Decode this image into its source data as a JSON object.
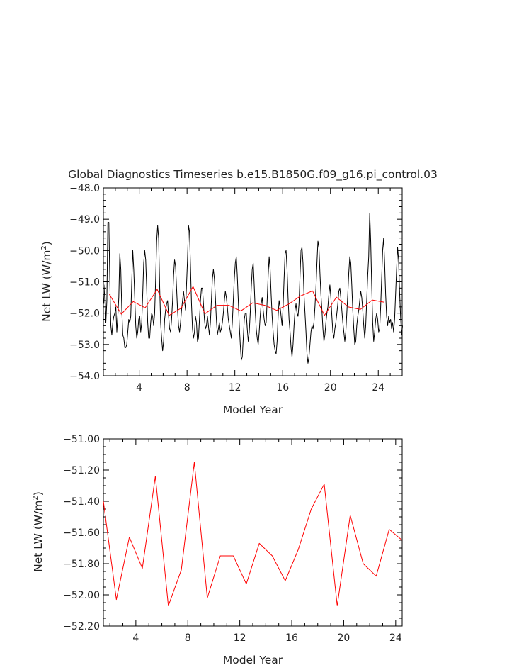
{
  "chart_data": [
    {
      "type": "line",
      "title": "Global Diagnostics Timeseries b.e15.B1850G.f09_g16.pi_control.03",
      "xlabel": "Model Year",
      "ylabel_main": "Net LW (W/m",
      "ylabel_sup": "2",
      "ylabel_close": ")",
      "xlim": [
        1,
        26
      ],
      "ylim": [
        -54.0,
        -48.0
      ],
      "xticks": [
        "4",
        "8",
        "12",
        "16",
        "20",
        "24"
      ],
      "yticks": [
        "-54.0",
        "-53.0",
        "-52.0",
        "-51.0",
        "-50.0",
        "-49.0",
        "-48.0"
      ],
      "series": [
        {
          "color": "#000000",
          "x_start": 1.042,
          "x_step": 0.0833,
          "values": [
            -51.7,
            -51.1,
            -52.3,
            -51.6,
            -49.1,
            -49.1,
            -51.0,
            -52.4,
            -52.7,
            -52.3,
            -52.1,
            -52.0,
            -51.8,
            -52.6,
            -52.1,
            -51.5,
            -50.1,
            -50.6,
            -51.9,
            -52.7,
            -52.8,
            -53.1,
            -53.1,
            -53.0,
            -52.6,
            -52.2,
            -52.3,
            -52.1,
            -51.0,
            -50.0,
            -50.6,
            -51.5,
            -52.4,
            -52.8,
            -52.6,
            -52.2,
            -52.1,
            -52.6,
            -52.3,
            -51.4,
            -50.4,
            -50.0,
            -50.3,
            -51.2,
            -52.3,
            -52.8,
            -52.8,
            -52.3,
            -52.0,
            -52.1,
            -52.4,
            -52.0,
            -50.9,
            -49.7,
            -49.2,
            -49.6,
            -51.1,
            -52.3,
            -52.8,
            -53.2,
            -52.9,
            -52.2,
            -51.9,
            -51.7,
            -51.6,
            -52.1,
            -52.5,
            -52.6,
            -52.2,
            -51.6,
            -50.8,
            -50.3,
            -50.5,
            -51.2,
            -51.9,
            -52.4,
            -52.6,
            -52.3,
            -51.9,
            -51.6,
            -51.3,
            -51.6,
            -51.9,
            -51.1,
            -50.3,
            -49.2,
            -49.4,
            -50.5,
            -51.7,
            -52.5,
            -52.8,
            -52.6,
            -52.1,
            -52.3,
            -52.9,
            -52.8,
            -52.2,
            -51.6,
            -51.2,
            -51.2,
            -51.7,
            -52.2,
            -52.5,
            -52.4,
            -52.1,
            -52.4,
            -52.7,
            -52.3,
            -51.6,
            -50.9,
            -50.6,
            -50.9,
            -51.5,
            -52.2,
            -52.7,
            -52.5,
            -52.3,
            -52.6,
            -52.5,
            -52.3,
            -52.0,
            -51.6,
            -51.3,
            -51.5,
            -51.8,
            -52.2,
            -52.4,
            -52.6,
            -52.8,
            -52.3,
            -51.6,
            -50.9,
            -50.4,
            -50.2,
            -50.8,
            -51.6,
            -52.4,
            -53.0,
            -53.5,
            -53.4,
            -52.8,
            -52.2,
            -52.0,
            -52.0,
            -52.5,
            -52.9,
            -52.6,
            -52.0,
            -51.2,
            -50.6,
            -50.4,
            -51.1,
            -51.9,
            -52.5,
            -52.8,
            -53.0,
            -52.6,
            -52.1,
            -51.7,
            -51.5,
            -51.9,
            -52.2,
            -52.4,
            -52.3,
            -51.6,
            -50.8,
            -50.2,
            -50.6,
            -51.4,
            -52.1,
            -52.6,
            -53.0,
            -53.2,
            -53.3,
            -52.9,
            -52.1,
            -51.6,
            -51.8,
            -52.1,
            -52.4,
            -51.8,
            -50.9,
            -50.1,
            -50.0,
            -50.6,
            -51.5,
            -52.2,
            -52.6,
            -53.1,
            -53.4,
            -53.0,
            -52.4,
            -51.9,
            -51.7,
            -52.0,
            -52.1,
            -51.7,
            -50.8,
            -50.0,
            -49.9,
            -50.4,
            -51.4,
            -52.0,
            -52.6,
            -53.3,
            -53.6,
            -53.4,
            -53.0,
            -52.6,
            -52.4,
            -52.5,
            -52.3,
            -51.8,
            -51.2,
            -50.4,
            -49.7,
            -49.9,
            -50.7,
            -51.4,
            -51.9,
            -52.5,
            -52.9,
            -52.7,
            -52.3,
            -52.0,
            -51.8,
            -51.4,
            -51.1,
            -51.5,
            -52.1,
            -52.6,
            -52.8,
            -52.5,
            -52.3,
            -52.0,
            -51.7,
            -51.3,
            -51.2,
            -51.5,
            -51.9,
            -52.3,
            -52.6,
            -52.9,
            -52.6,
            -52.0,
            -51.4,
            -50.7,
            -50.2,
            -50.4,
            -51.1,
            -51.9,
            -52.5,
            -53.0,
            -52.9,
            -52.4,
            -52.1,
            -51.9,
            -51.6,
            -51.3,
            -51.5,
            -51.9,
            -52.4,
            -52.8,
            -52.4,
            -51.6,
            -50.8,
            -50.2,
            -48.8,
            -49.7,
            -51.1,
            -52.3,
            -52.9,
            -52.6,
            -52.2,
            -52.0,
            -52.2,
            -52.6,
            -52.5,
            -51.8,
            -50.9,
            -50.0,
            -49.6,
            -50.4,
            -51.4,
            -52.1,
            -52.4,
            -52.1,
            -52.3,
            -52.2,
            -52.5,
            -52.3,
            -52.6,
            -52.2,
            -51.4,
            -50.6,
            -49.9,
            -50.3,
            -51.3,
            -52.1,
            -52.7,
            -52.4
          ]
        },
        {
          "color": "#ff0000",
          "x": [
            1.5,
            2.5,
            3.5,
            4.5,
            5.5,
            6.5,
            7.5,
            8.5,
            9.5,
            10.5,
            11.5,
            12.5,
            13.5,
            14.5,
            15.5,
            16.5,
            17.5,
            18.5,
            19.5,
            20.5,
            21.5,
            22.5,
            23.5,
            24.5
          ],
          "values": [
            -51.4,
            -52.03,
            -51.63,
            -51.83,
            -51.24,
            -52.07,
            -51.84,
            -51.15,
            -52.02,
            -51.75,
            -51.75,
            -51.93,
            -51.67,
            -51.75,
            -51.91,
            -51.71,
            -51.45,
            -51.29,
            -52.07,
            -51.49,
            -51.8,
            -51.88,
            -51.58,
            -51.65
          ]
        }
      ]
    },
    {
      "type": "line",
      "title": "",
      "xlabel": "Model Year",
      "ylabel_main": "Net LW (W/m",
      "ylabel_sup": "2",
      "ylabel_close": ")",
      "xlim": [
        1.5,
        24.5
      ],
      "ylim": [
        -52.2,
        -51.0
      ],
      "xticks": [
        "4",
        "8",
        "12",
        "16",
        "20",
        "24"
      ],
      "yticks": [
        "-52.20",
        "-52.00",
        "-51.80",
        "-51.60",
        "-51.40",
        "-51.20",
        "-51.00"
      ],
      "series": [
        {
          "color": "#ff0000",
          "x": [
            1.5,
            2.5,
            3.5,
            4.5,
            5.5,
            6.5,
            7.5,
            8.5,
            9.5,
            10.5,
            11.5,
            12.5,
            13.5,
            14.5,
            15.5,
            16.5,
            17.5,
            18.5,
            19.5,
            20.5,
            21.5,
            22.5,
            23.5,
            24.5
          ],
          "values": [
            -51.4,
            -52.03,
            -51.63,
            -51.83,
            -51.24,
            -52.07,
            -51.84,
            -51.15,
            -52.02,
            -51.75,
            -51.75,
            -51.93,
            -51.67,
            -51.75,
            -51.91,
            -51.71,
            -51.45,
            -51.29,
            -52.07,
            -51.49,
            -51.8,
            -51.88,
            -51.58,
            -51.65
          ]
        }
      ]
    }
  ]
}
